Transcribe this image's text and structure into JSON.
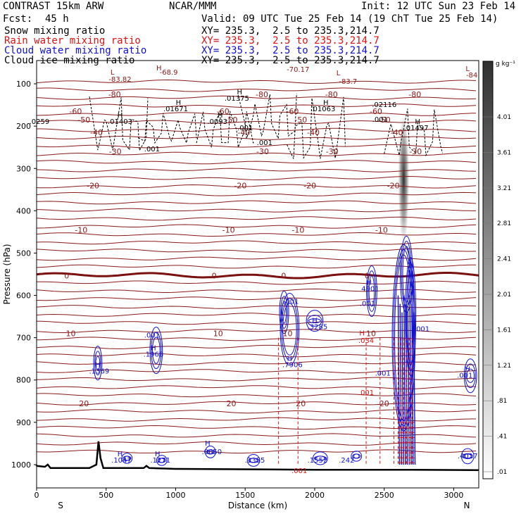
{
  "header": {
    "model": "CONTRAST 15km ARW",
    "center": "NCAR/MMM",
    "init": "Init: 12 UTC Sun 23 Feb 14",
    "fcst_label": "Fcst:",
    "fcst_value": "45 h",
    "valid": "Valid: 09 UTC Tue 25 Feb 14 (19 ChT Tue 25 Feb 14)",
    "fields": [
      {
        "name": "Snow mixing ratio",
        "xy": "XY= 235.3,  2.5 to 235.3,214.7",
        "color": "#000000"
      },
      {
        "name": "Rain water mixing ratio",
        "xy": "XY= 235.3,  2.5 to 235.3,214.7",
        "color": "#e01010"
      },
      {
        "name": "Cloud water mixing ratio",
        "xy": "XY= 235.3,  2.5 to 235.3,214.7",
        "color": "#1010d0"
      },
      {
        "name": "Cloud ice mixing ratio",
        "xy": "XY= 235.3,  2.5 to 235.3,214.7",
        "color": "#000000"
      }
    ]
  },
  "chart_data": {
    "type": "cross-section",
    "ylabel": "Pressure (hPa)",
    "xlabel": "Distance (km)",
    "x_ticks": [
      0,
      500,
      1000,
      1500,
      2000,
      2500,
      3000
    ],
    "y_ticks": [
      100,
      200,
      300,
      400,
      500,
      600,
      700,
      800,
      900,
      1000
    ],
    "xlim": [
      0,
      3180
    ],
    "ylim": [
      1055,
      45
    ],
    "side_labels": {
      "left": "S",
      "right": "N"
    },
    "colorbar": {
      "unit": "g kg⁻¹",
      "ticks": [
        "4.01",
        "3.61",
        "3.21",
        "2.81",
        "2.41",
        "2.01",
        "1.61",
        "1.21",
        ".81",
        ".41",
        ".01"
      ]
    },
    "temperature_contours": [
      {
        "label": "-80",
        "p": 125
      },
      {
        "label": "-60",
        "p": 165
      },
      {
        "label": "-50",
        "p": 185
      },
      {
        "label": "-40",
        "p": 215
      },
      {
        "label": "-30",
        "p": 260
      },
      {
        "label": "-20",
        "p": 340
      },
      {
        "label": "-10",
        "p": 445
      },
      {
        "label": "0",
        "p": 553
      },
      {
        "label": "10",
        "p": 690
      },
      {
        "label": "20",
        "p": 855
      }
    ],
    "extrema_labels": [
      {
        "text": "L",
        "x": 545,
        "p": 78,
        "color": "#8b1a1a"
      },
      {
        "text": "-83.82",
        "x": 600,
        "p": 95,
        "color": "#8b1a1a"
      },
      {
        "text": "H",
        "x": 880,
        "p": 68,
        "color": "#8b1a1a"
      },
      {
        "text": "-68.9",
        "x": 950,
        "p": 78,
        "color": "#8b1a1a"
      },
      {
        "text": "-70.17",
        "x": 1880,
        "p": 72,
        "color": "#8b1a1a"
      },
      {
        "text": "L",
        "x": 2170,
        "p": 80,
        "color": "#8b1a1a"
      },
      {
        "text": "-83.7",
        "x": 2240,
        "p": 100,
        "color": "#8b1a1a"
      },
      {
        "text": "L",
        "x": 3100,
        "p": 70,
        "color": "#8b1a1a"
      },
      {
        "text": "-84",
        "x": 3130,
        "p": 85,
        "color": "#8b1a1a"
      },
      {
        "text": "H",
        "x": 1020,
        "p": 150,
        "color": "#000000"
      },
      {
        "text": ".01671",
        "x": 1000,
        "p": 165,
        "color": "#000000"
      },
      {
        "text": "H",
        "x": 1460,
        "p": 125,
        "color": "#000000"
      },
      {
        "text": ".01375",
        "x": 1440,
        "p": 140,
        "color": "#000000"
      },
      {
        "text": "H",
        "x": 2080,
        "p": 150,
        "color": "#000000"
      },
      {
        "text": ".01063",
        "x": 2060,
        "p": 165,
        "color": "#000000"
      },
      {
        "text": ".02116",
        "x": 2500,
        "p": 155,
        "color": "#000000"
      },
      {
        "text": ".001",
        "x": 2470,
        "p": 190,
        "color": "#000000"
      },
      {
        "text": "H",
        "x": 2740,
        "p": 195,
        "color": "#000000"
      },
      {
        "text": ".01497",
        "x": 2730,
        "p": 210,
        "color": "#000000"
      },
      {
        "text": ".0259",
        "x": 20,
        "p": 195,
        "color": "#000000"
      },
      {
        "text": "H",
        "x": 600,
        "p": 180,
        "color": "#000000"
      },
      {
        "text": ".01403",
        "x": 600,
        "p": 195,
        "color": "#000000"
      },
      {
        "text": "H",
        "x": 1320,
        "p": 180,
        "color": "#000000"
      },
      {
        "text": ".0093",
        "x": 1300,
        "p": 195,
        "color": "#000000"
      },
      {
        "text": ".001",
        "x": 1500,
        "p": 210,
        "color": "#000000"
      },
      {
        "text": ".001",
        "x": 1640,
        "p": 245,
        "color": "#000000"
      },
      {
        "text": ".001",
        "x": 830,
        "p": 260,
        "color": "#000000"
      },
      {
        "text": "H",
        "x": 2390,
        "p": 575,
        "color": "#1010d0"
      },
      {
        "text": "4901",
        "x": 2400,
        "p": 590,
        "color": "#1010d0"
      },
      {
        "text": ".001",
        "x": 2380,
        "p": 625,
        "color": "#1010d0"
      },
      {
        "text": ".001",
        "x": 1830,
        "p": 620,
        "color": "#1010d0"
      },
      {
        "text": "H",
        "x": 2000,
        "p": 665,
        "color": "#1010d0"
      },
      {
        "text": ".3285",
        "x": 2020,
        "p": 680,
        "color": "#1010d0"
      },
      {
        "text": ".001",
        "x": 830,
        "p": 700,
        "color": "#1010d0"
      },
      {
        "text": "H",
        "x": 840,
        "p": 730,
        "color": "#1010d0"
      },
      {
        "text": ".1968",
        "x": 840,
        "p": 745,
        "color": "#1010d0"
      },
      {
        "text": "H",
        "x": 440,
        "p": 770,
        "color": "#1010d0"
      },
      {
        "text": ".1369",
        "x": 450,
        "p": 785,
        "color": "#1010d0"
      },
      {
        "text": "H",
        "x": 1820,
        "p": 755,
        "color": "#1010d0"
      },
      {
        "text": ".7906",
        "x": 1840,
        "p": 770,
        "color": "#1010d0"
      },
      {
        "text": ".001",
        "x": 2490,
        "p": 790,
        "color": "#1010d0"
      },
      {
        "text": ".001",
        "x": 2770,
        "p": 685,
        "color": "#1010d0"
      },
      {
        "text": ".001",
        "x": 3080,
        "p": 795,
        "color": "#1010d0"
      },
      {
        "text": "H",
        "x": 3100,
        "p": 780,
        "color": "#1010d0"
      },
      {
        "text": "H",
        "x": 600,
        "p": 980,
        "color": "#1010d0"
      },
      {
        "text": ".1047",
        "x": 610,
        "p": 995,
        "color": "#1010d0"
      },
      {
        "text": "H",
        "x": 870,
        "p": 980,
        "color": "#1010d0"
      },
      {
        "text": ".1271",
        "x": 890,
        "p": 995,
        "color": "#1010d0"
      },
      {
        "text": "H",
        "x": 1230,
        "p": 955,
        "color": "#1010d0"
      },
      {
        "text": ".0650",
        "x": 1260,
        "p": 975,
        "color": "#1010d0"
      },
      {
        "text": ".3355",
        "x": 1570,
        "p": 995,
        "color": "#1010d0"
      },
      {
        "text": ".1552",
        "x": 2020,
        "p": 995,
        "color": "#1010d0"
      },
      {
        "text": ".242",
        "x": 2230,
        "p": 995,
        "color": "#1010d0"
      },
      {
        "text": ".4017",
        "x": 3100,
        "p": 985,
        "color": "#1010d0"
      },
      {
        "text": "H",
        "x": 2340,
        "p": 695,
        "color": "#e01010"
      },
      {
        "text": ".034",
        "x": 2370,
        "p": 712,
        "color": "#e01010"
      },
      {
        "text": ".001",
        "x": 2370,
        "p": 835,
        "color": "#e01010"
      },
      {
        "text": ".001",
        "x": 1890,
        "p": 1020,
        "color": "#e01010"
      }
    ]
  }
}
